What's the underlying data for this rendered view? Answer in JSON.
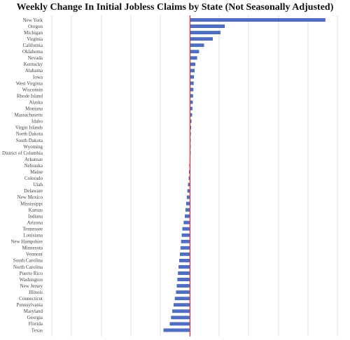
{
  "chart_data": {
    "type": "bar",
    "orientation": "horizontal",
    "title": "Weekly Change In Initial Jobless Claims by State (Not Seasonally Adjusted)",
    "xlabel": "",
    "ylabel": "",
    "xlim": [
      -22,
      25
    ],
    "grid": true,
    "legend": "none",
    "colors": {
      "bar": "#4f6fc4",
      "bar_edge": "#2f4fa0",
      "zero_line": "#e0393e",
      "grid": "#d9d9d9"
    },
    "categories": [
      "New York",
      "Oregon",
      "Michigan",
      "Virginia",
      "California",
      "Oklahoma",
      "Nevada",
      "Kentucky",
      "Alabama",
      "Iowa",
      "West Virginia",
      "Wisconsin",
      "Rhode Island",
      "Alaska",
      "Montana",
      "Massachusetts",
      "Idaho",
      "Virgin Islands",
      "North Dakota",
      "South Dakota",
      "Wyoming",
      "District of Columbia",
      "Arkansas",
      "Nebraska",
      "Maine",
      "Colorado",
      "Utah",
      "Delaware",
      "New Mexico",
      "Mississippi",
      "Kansas",
      "Indiana",
      "Arizona",
      "Tennessee",
      "Louisiana",
      "New Hampshire",
      "Minnesota",
      "Vermont",
      "South Carolina",
      "North Carolina",
      "Puerto Rico",
      "Washington",
      "New Jersey",
      "Illinois",
      "Connecticut",
      "Pennsylvania",
      "Maryland",
      "Georgia",
      "Florida",
      "Texas"
    ],
    "values": [
      21.5,
      5.5,
      4.8,
      3.6,
      2.2,
      1.4,
      1.1,
      0.8,
      0.7,
      0.6,
      0.55,
      0.5,
      0.45,
      0.4,
      0.35,
      0.3,
      0.2,
      0.15,
      0.1,
      0.08,
      0.05,
      0.02,
      -0.05,
      -0.1,
      -0.15,
      -0.2,
      -0.3,
      -0.4,
      -0.5,
      -0.6,
      -0.7,
      -0.8,
      -1.0,
      -1.2,
      -1.3,
      -1.4,
      -1.5,
      -1.6,
      -1.7,
      -1.8,
      -1.9,
      -2.0,
      -2.1,
      -2.2,
      -2.4,
      -2.6,
      -2.8,
      -3.0,
      -3.2,
      -4.2
    ]
  }
}
